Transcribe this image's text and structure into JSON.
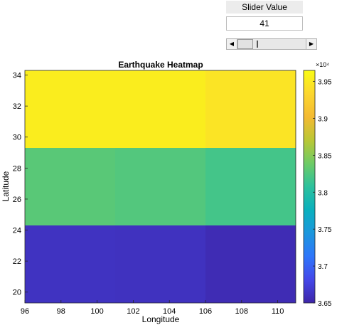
{
  "slider": {
    "label": "Slider Value",
    "value": "41",
    "left_arrow": "◀",
    "right_arrow": "▶"
  },
  "chart_data": {
    "type": "heatmap",
    "title": "Earthquake Heatmap",
    "xlabel": "Longitude",
    "ylabel": "Latitude",
    "x_ticks": [
      "96",
      "98",
      "100",
      "102",
      "104",
      "106",
      "108",
      "110"
    ],
    "y_ticks": [
      "20",
      "22",
      "24",
      "26",
      "28",
      "30",
      "32",
      "34"
    ],
    "x_edges": [
      96,
      101,
      106,
      111
    ],
    "y_edges": [
      19.3,
      24.3,
      29.3,
      34.3
    ],
    "xlim": [
      96,
      111
    ],
    "ylim": [
      19.3,
      34.3
    ],
    "values": [
      [
        36620,
        36610,
        36560
      ],
      [
        38290,
        38260,
        38190
      ],
      [
        39530,
        39530,
        39450
      ]
    ],
    "colorbar": {
      "clim": [
        36500,
        39650
      ],
      "ticks": [
        36500,
        37000,
        37500,
        38000,
        38500,
        39000,
        39500
      ],
      "tick_labels": [
        "3.65",
        "3.7",
        "3.75",
        "3.8",
        "3.85",
        "3.9",
        "3.95"
      ],
      "exponent": "×10⁴",
      "colormap": "parula"
    }
  }
}
